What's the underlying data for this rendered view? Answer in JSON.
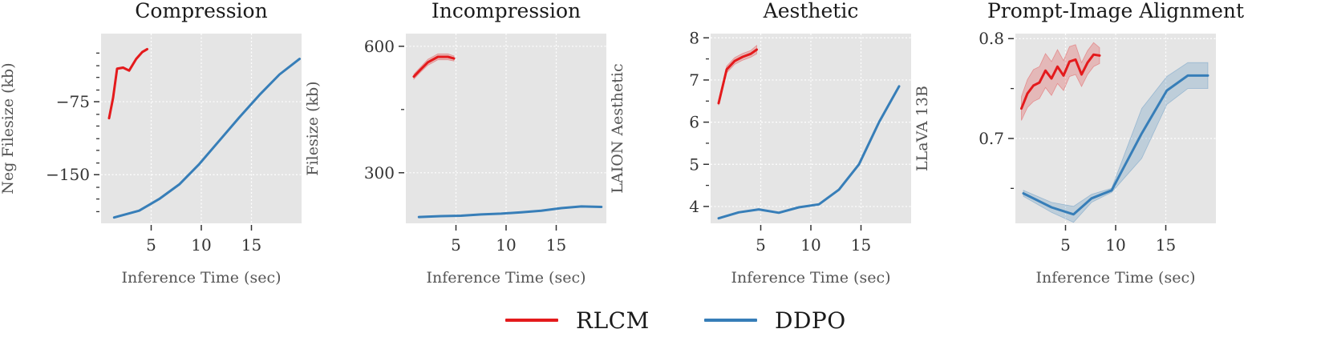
{
  "chart_data": [
    {
      "type": "line",
      "title": "Compression",
      "xlabel": "Inference Time (sec)",
      "ylabel": "Neg Filesize (kb)",
      "xlim": [
        0,
        20
      ],
      "ylim": [
        -200,
        -5
      ],
      "xticks": [
        5,
        10,
        15
      ],
      "xtick_labels": [
        "5",
        "10",
        "15"
      ],
      "yticks": [
        -150,
        -75
      ],
      "ytick_labels": [
        "−150",
        "−75"
      ],
      "yminor": [
        -188,
        -175,
        -163,
        -138,
        -125,
        -113,
        -100,
        -88,
        -63,
        -50,
        -38,
        -25
      ],
      "series": [
        {
          "name": "RLCM",
          "color": "#e41a1c",
          "x": [
            0.8,
            1.2,
            1.6,
            2.2,
            2.8,
            3.5,
            4.1,
            4.6
          ],
          "y": [
            -92,
            -71,
            -41,
            -40,
            -43,
            -31,
            -24,
            -21
          ],
          "band": [
            1,
            1,
            1,
            1,
            1,
            1,
            1,
            1
          ]
        },
        {
          "name": "DDPO",
          "color": "#377eb8",
          "x": [
            1.3,
            3.8,
            5.8,
            7.8,
            9.8,
            11.8,
            13.8,
            15.8,
            17.8,
            19.8
          ],
          "y": [
            -194,
            -187,
            -175,
            -160,
            -139,
            -115,
            -91,
            -68,
            -47,
            -31
          ],
          "band": [
            0,
            0,
            0,
            0,
            0,
            0,
            0,
            0,
            0,
            0
          ]
        }
      ]
    },
    {
      "type": "line",
      "title": "Incompression",
      "xlabel": "Inference Time (sec)",
      "ylabel": "Filesize (kb)",
      "xlim": [
        0,
        20
      ],
      "ylim": [
        180,
        630
      ],
      "xticks": [
        5,
        10,
        15
      ],
      "xtick_labels": [
        "5",
        "10",
        "15"
      ],
      "yticks": [
        300,
        600
      ],
      "ytick_labels": [
        "300",
        "600"
      ],
      "yminor": [
        450
      ],
      "series": [
        {
          "name": "RLCM",
          "color": "#e41a1c",
          "x": [
            0.8,
            1.4,
            2.2,
            3.2,
            4.2,
            4.8
          ],
          "y": [
            528,
            543,
            562,
            575,
            575,
            571
          ],
          "band": [
            6,
            6,
            7,
            7,
            7,
            6
          ]
        },
        {
          "name": "DDPO",
          "color": "#377eb8",
          "x": [
            1.3,
            3.5,
            5.5,
            7.5,
            9.5,
            11.5,
            13.5,
            15.5,
            17.5,
            19.5
          ],
          "y": [
            195,
            197,
            198,
            201,
            203,
            206,
            210,
            216,
            220,
            219
          ],
          "band": [
            0,
            0,
            0,
            0,
            0,
            0,
            0,
            0,
            0,
            0
          ]
        }
      ]
    },
    {
      "type": "line",
      "title": "Aesthetic",
      "xlabel": "Inference Time (sec)",
      "ylabel": "LAION Aesthetic",
      "xlim": [
        0,
        20
      ],
      "ylim": [
        3.6,
        8.1
      ],
      "xticks": [
        5,
        10,
        15
      ],
      "xtick_labels": [
        "5",
        "10",
        "15"
      ],
      "yticks": [
        4,
        5,
        6,
        7,
        8
      ],
      "ytick_labels": [
        "4",
        "5",
        "6",
        "7",
        "8"
      ],
      "yminor": [
        4.5,
        5.5,
        6.5,
        7.5
      ],
      "series": [
        {
          "name": "RLCM",
          "color": "#e41a1c",
          "x": [
            0.8,
            1.6,
            2.4,
            3.2,
            4.0,
            4.6
          ],
          "y": [
            6.45,
            7.25,
            7.45,
            7.55,
            7.62,
            7.72
          ],
          "band": [
            0.05,
            0.08,
            0.08,
            0.08,
            0.08,
            0.1
          ]
        },
        {
          "name": "DDPO",
          "color": "#377eb8",
          "x": [
            0.8,
            2.8,
            4.8,
            6.8,
            8.8,
            10.8,
            12.8,
            14.8,
            16.8,
            18.8
          ],
          "y": [
            3.72,
            3.86,
            3.93,
            3.85,
            3.98,
            4.05,
            4.4,
            5.0,
            6.0,
            6.85
          ],
          "band": [
            0,
            0,
            0,
            0,
            0,
            0,
            0,
            0,
            0,
            0
          ]
        }
      ]
    },
    {
      "type": "line",
      "title": "Prompt-Image Alignment",
      "xlabel": "Inference Time (sec)",
      "ylabel": "LLaVA 13B",
      "xlim": [
        0,
        20
      ],
      "ylim": [
        0.615,
        0.805
      ],
      "xticks": [
        5,
        10,
        15
      ],
      "xtick_labels": [
        "5",
        "10",
        "15"
      ],
      "yticks": [
        0.7,
        0.8
      ],
      "ytick_labels": [
        "0.7",
        "0.8"
      ],
      "yminor": [
        0.65,
        0.75
      ],
      "series": [
        {
          "name": "RLCM",
          "color": "#e41a1c",
          "x": [
            0.6,
            1.2,
            1.8,
            2.4,
            3.0,
            3.6,
            4.2,
            4.8,
            5.4,
            6.0,
            6.6,
            7.2,
            7.8,
            8.4
          ],
          "y": [
            0.73,
            0.745,
            0.753,
            0.756,
            0.768,
            0.76,
            0.772,
            0.763,
            0.777,
            0.779,
            0.764,
            0.776,
            0.784,
            0.783
          ],
          "band": [
            0.012,
            0.014,
            0.016,
            0.016,
            0.017,
            0.017,
            0.017,
            0.015,
            0.015,
            0.015,
            0.012,
            0.012,
            0.012,
            0.008
          ]
        },
        {
          "name": "DDPO",
          "color": "#377eb8",
          "x": [
            0.8,
            3.6,
            5.8,
            7.6,
            9.6,
            12.6,
            15.1,
            17.2,
            19.2
          ],
          "y": [
            0.645,
            0.631,
            0.624,
            0.64,
            0.648,
            0.705,
            0.748,
            0.763,
            0.763
          ],
          "band": [
            0.003,
            0.005,
            0.008,
            0.004,
            0.002,
            0.025,
            0.014,
            0.013,
            0.013
          ]
        }
      ]
    }
  ],
  "legend": {
    "items": [
      {
        "label": "RLCM",
        "color": "#e41a1c"
      },
      {
        "label": "DDPO",
        "color": "#377eb8"
      }
    ]
  }
}
